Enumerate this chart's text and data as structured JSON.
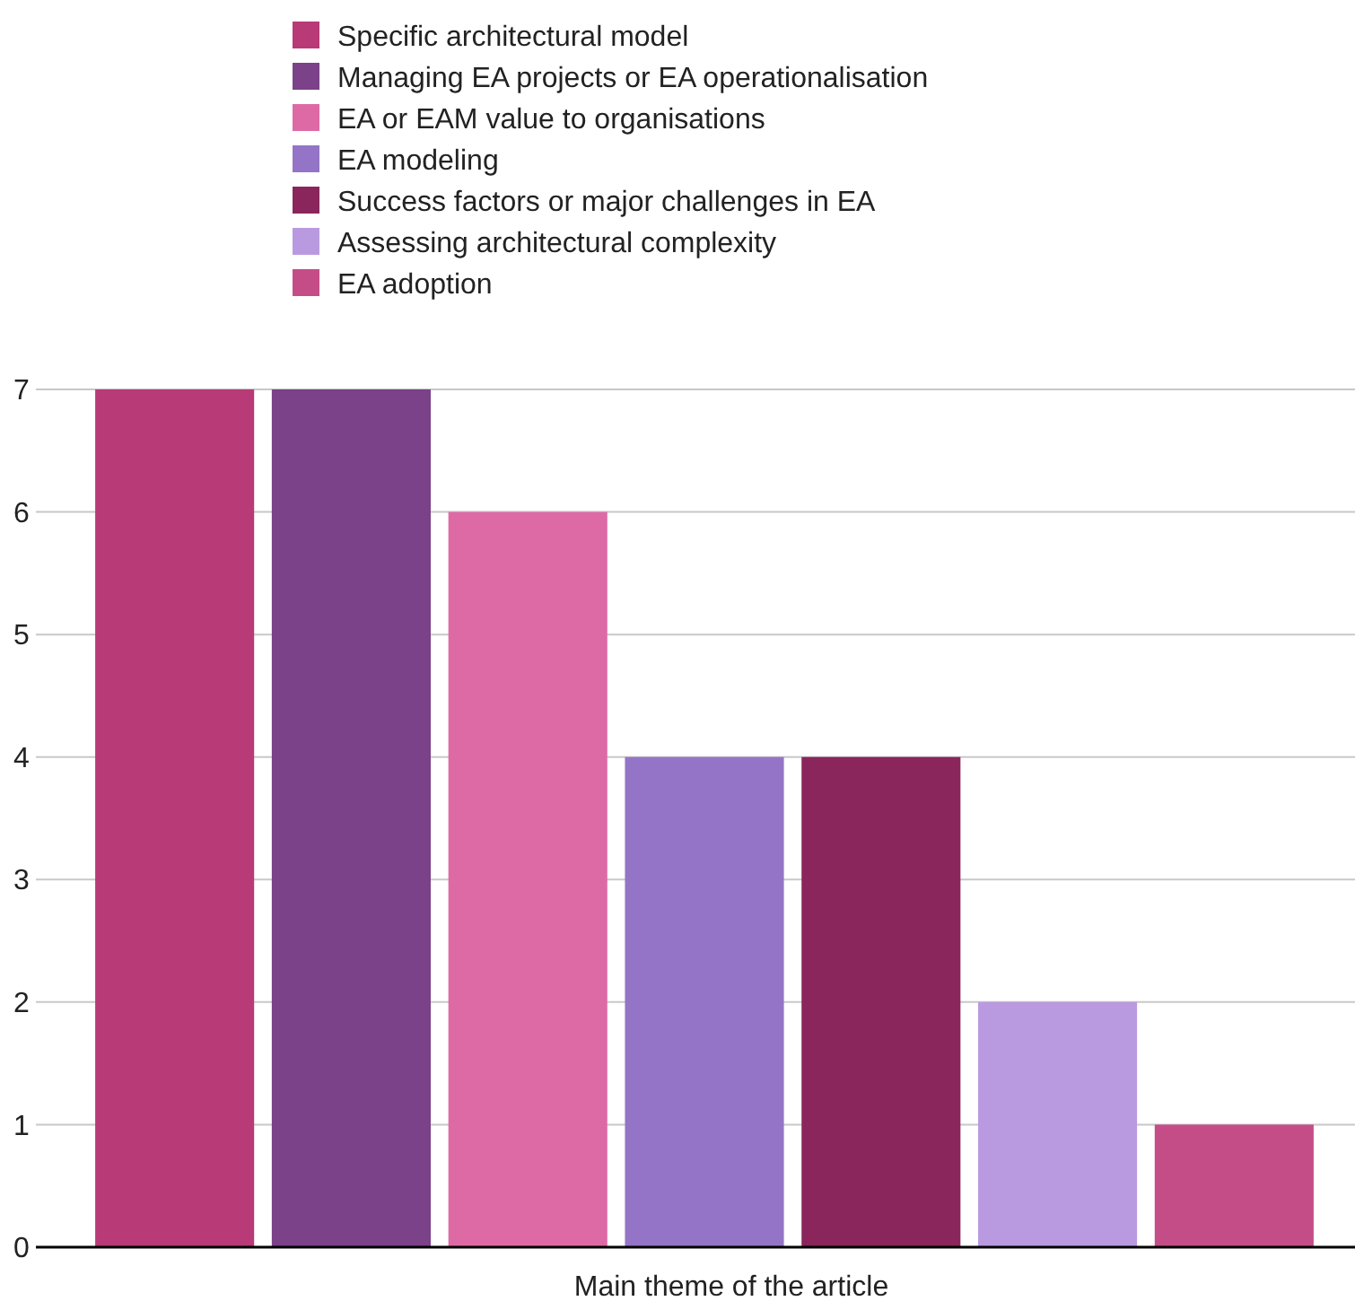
{
  "chart_data": {
    "type": "bar",
    "xlabel": "Main theme of the article",
    "categories": [
      null
    ],
    "series": [
      {
        "name": "Specific architectural model",
        "color": "#b83a76",
        "values": [
          7
        ]
      },
      {
        "name": "Managing EA projects or EA operationalisation",
        "color": "#7b4189",
        "values": [
          7
        ]
      },
      {
        "name": "EA or EAM value to organisations",
        "color": "#de6aa5",
        "values": [
          6
        ]
      },
      {
        "name": "EA modeling",
        "color": "#9474c7",
        "values": [
          4
        ]
      },
      {
        "name": "Success factors or major challenges in EA",
        "color": "#8a265c",
        "values": [
          4
        ]
      },
      {
        "name": "Assessing architectural complexity",
        "color": "#b99ae0",
        "values": [
          2
        ]
      },
      {
        "name": "EA adoption",
        "color": "#c44d87",
        "values": [
          1
        ]
      }
    ],
    "ylim": [
      0,
      7
    ],
    "yticks": [
      0,
      1,
      2,
      3,
      4,
      5,
      6,
      7
    ],
    "grid": "y",
    "legend": "top"
  }
}
